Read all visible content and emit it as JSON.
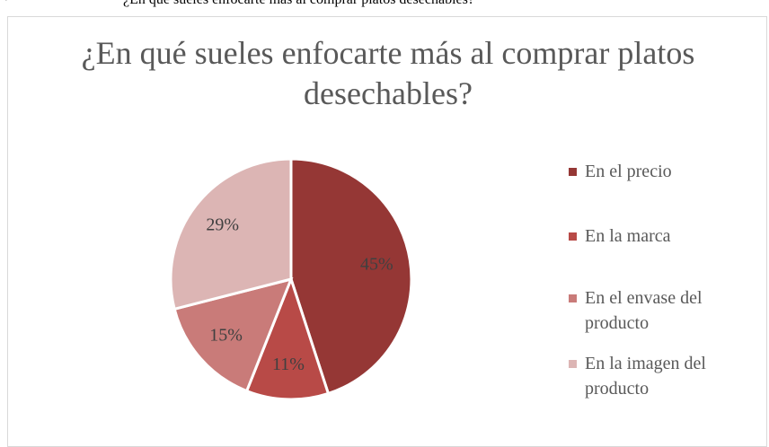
{
  "document_heading": {
    "bullet": "•",
    "text": "¿En qué sueles enfocarte más al comprar platos desechables?"
  },
  "chart_data": {
    "type": "pie",
    "title": "¿En qué sueles enfocarte más al comprar platos desechables?",
    "categories": [
      "En el precio",
      "En la marca",
      "En el envase del producto",
      "En la imagen del producto"
    ],
    "values": [
      45,
      11,
      15,
      29
    ],
    "value_labels": [
      "45%",
      "11%",
      "15%",
      "29%"
    ],
    "colors": [
      "#953735",
      "#b84a47",
      "#c97b79",
      "#dcb5b4"
    ],
    "legend": "right"
  }
}
